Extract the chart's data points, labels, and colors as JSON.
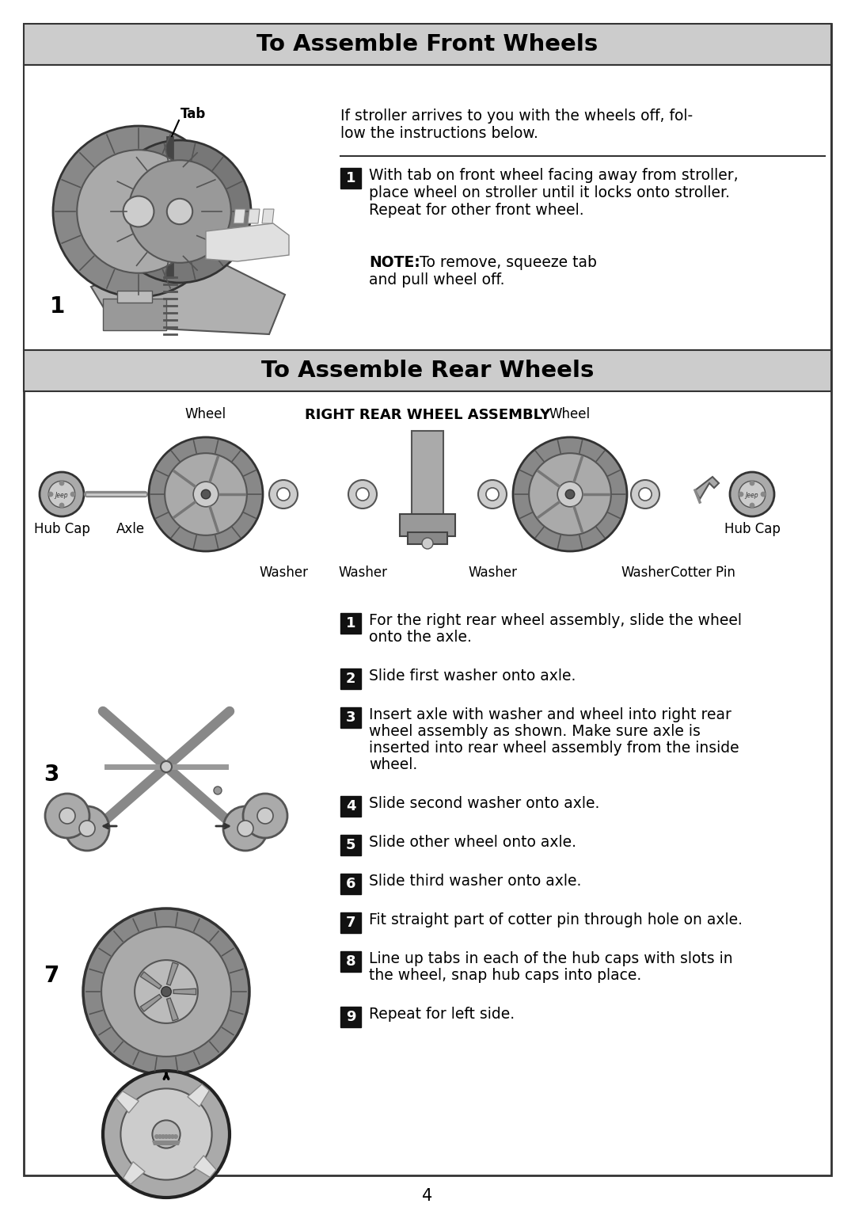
{
  "page_bg": "#ffffff",
  "border_color": "#555555",
  "header1_bg": "#cccccc",
  "header1_text": "To Assemble Front Wheels",
  "header2_bg": "#cccccc",
  "header2_text": "To Assemble Rear Wheels",
  "subheader2": "RIGHT REAR WHEEL ASSEMBLY",
  "front_intro_line1": "If stroller arrives to you with the wheels off, fol-",
  "front_intro_line2": "low the instructions below.",
  "front_step1_text_line1": "With tab on front wheel facing away from stroller,",
  "front_step1_text_line2": "place wheel on stroller until it locks onto stroller.",
  "front_step1_text_line3": "Repeat for other front wheel.",
  "front_note_bold": "NOTE:",
  "front_note_rest": "  To remove, squeeze tab",
  "front_note_line2": "and pull wheel off.",
  "front_fig_label": "1",
  "front_tab_label": "Tab",
  "rear_step3_label": "3",
  "rear_step7_label": "7",
  "rear_lbl_hubcap_l": "Hub Cap",
  "rear_lbl_axle": "Axle",
  "rear_lbl_wheel_l": "Wheel",
  "rear_lbl_washer_l": "Washer",
  "rear_lbl_washer_m1": "Washer",
  "rear_lbl_washer_m2": "Washer",
  "rear_lbl_wheel_r": "Wheel",
  "rear_lbl_washer_r": "Washer",
  "rear_lbl_cotterpin": "Cotter Pin",
  "rear_lbl_hubcap_r": "Hub Cap",
  "rear_steps": [
    {
      "num": "1",
      "text": [
        "For the right rear wheel assembly, slide the wheel",
        "onto the axle."
      ]
    },
    {
      "num": "2",
      "text": [
        "Slide first washer onto axle."
      ]
    },
    {
      "num": "3",
      "text": [
        "Insert axle with washer and wheel into right rear",
        "wheel assembly as shown. Make sure axle is",
        "inserted into rear wheel assembly from the inside",
        "wheel."
      ]
    },
    {
      "num": "4",
      "text": [
        "Slide second washer onto axle."
      ]
    },
    {
      "num": "5",
      "text": [
        "Slide other wheel onto axle."
      ]
    },
    {
      "num": "6",
      "text": [
        "Slide third washer onto axle."
      ]
    },
    {
      "num": "7",
      "text": [
        "Fit straight part of cotter pin through hole on axle."
      ]
    },
    {
      "num": "8",
      "text": [
        "Line up tabs in each of the hub caps with slots in",
        "the wheel, snap hub caps into place."
      ]
    },
    {
      "num": "9",
      "text": [
        "Repeat for left side."
      ]
    }
  ],
  "page_number": "4",
  "black": "#000000",
  "white": "#ffffff",
  "badge_bg": "#111111",
  "gray1": "#aaaaaa",
  "gray2": "#888888",
  "gray3": "#cccccc",
  "gray4": "#666666",
  "gray5": "#dddddd"
}
